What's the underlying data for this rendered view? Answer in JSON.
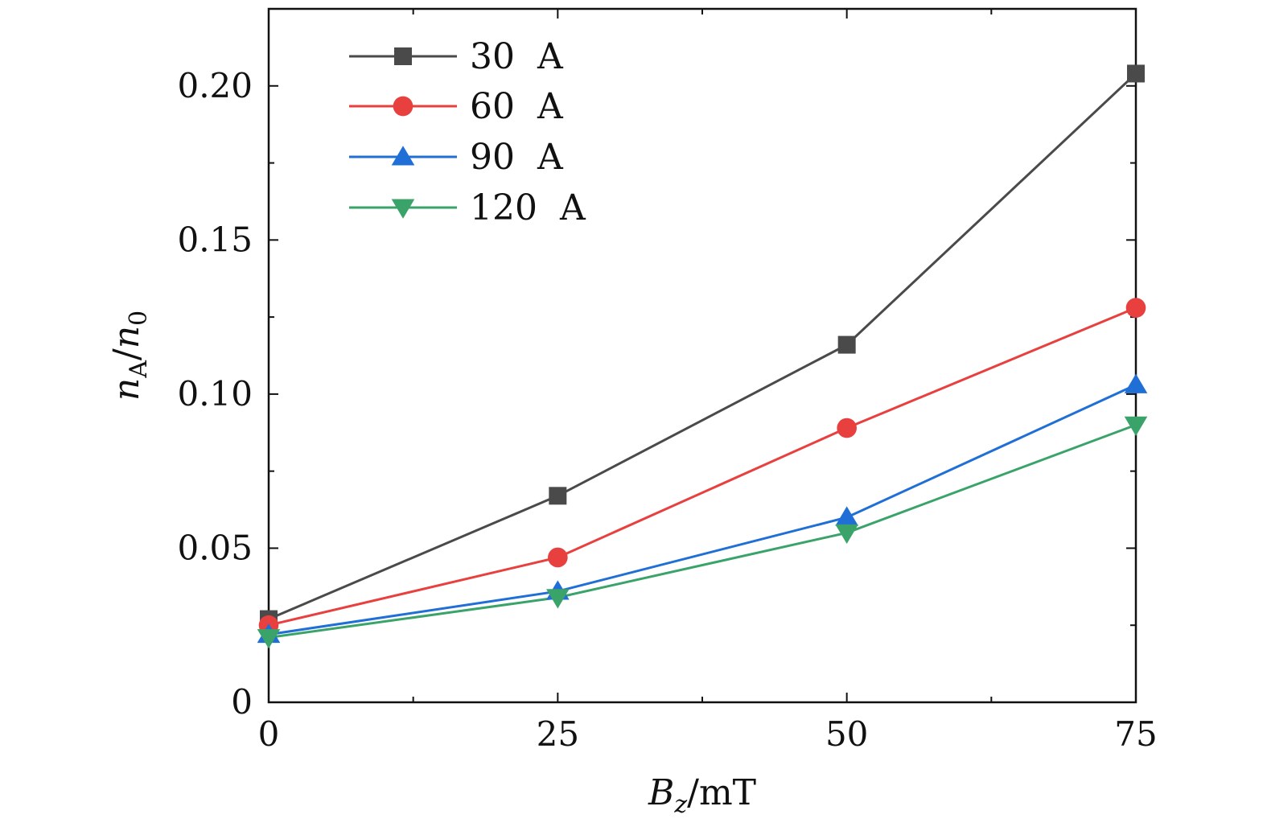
{
  "chart_data": {
    "type": "line",
    "x": [
      0,
      25,
      50,
      75
    ],
    "xlabel": {
      "base": "B",
      "sub": "z",
      "rest": "/mT"
    },
    "ylabel": {
      "base": "n",
      "sub": "A",
      "sep": "/",
      "base2": "n",
      "sub2": "0"
    },
    "xlim": [
      0,
      75
    ],
    "ylim": [
      0,
      0.225
    ],
    "xticks": [
      "0",
      "25",
      "50",
      "75"
    ],
    "yticks": [
      "0",
      "0.05",
      "0.10",
      "0.15",
      "0.20"
    ],
    "ytick_values": [
      0,
      0.05,
      0.1,
      0.15,
      0.2
    ],
    "legend_position": "top-left",
    "series": [
      {
        "name": "30  A",
        "marker": "square",
        "color": "#4a4a4a",
        "values": [
          0.027,
          0.067,
          0.116,
          0.204
        ]
      },
      {
        "name": "60  A",
        "marker": "circle",
        "color": "#e8403f",
        "values": [
          0.025,
          0.047,
          0.089,
          0.128
        ]
      },
      {
        "name": "90  A",
        "marker": "triangle-up",
        "color": "#1f6fd6",
        "values": [
          0.022,
          0.036,
          0.06,
          0.103
        ]
      },
      {
        "name": "120  A",
        "marker": "triangle-down",
        "color": "#3aa36a",
        "values": [
          0.021,
          0.034,
          0.055,
          0.09
        ]
      }
    ]
  }
}
